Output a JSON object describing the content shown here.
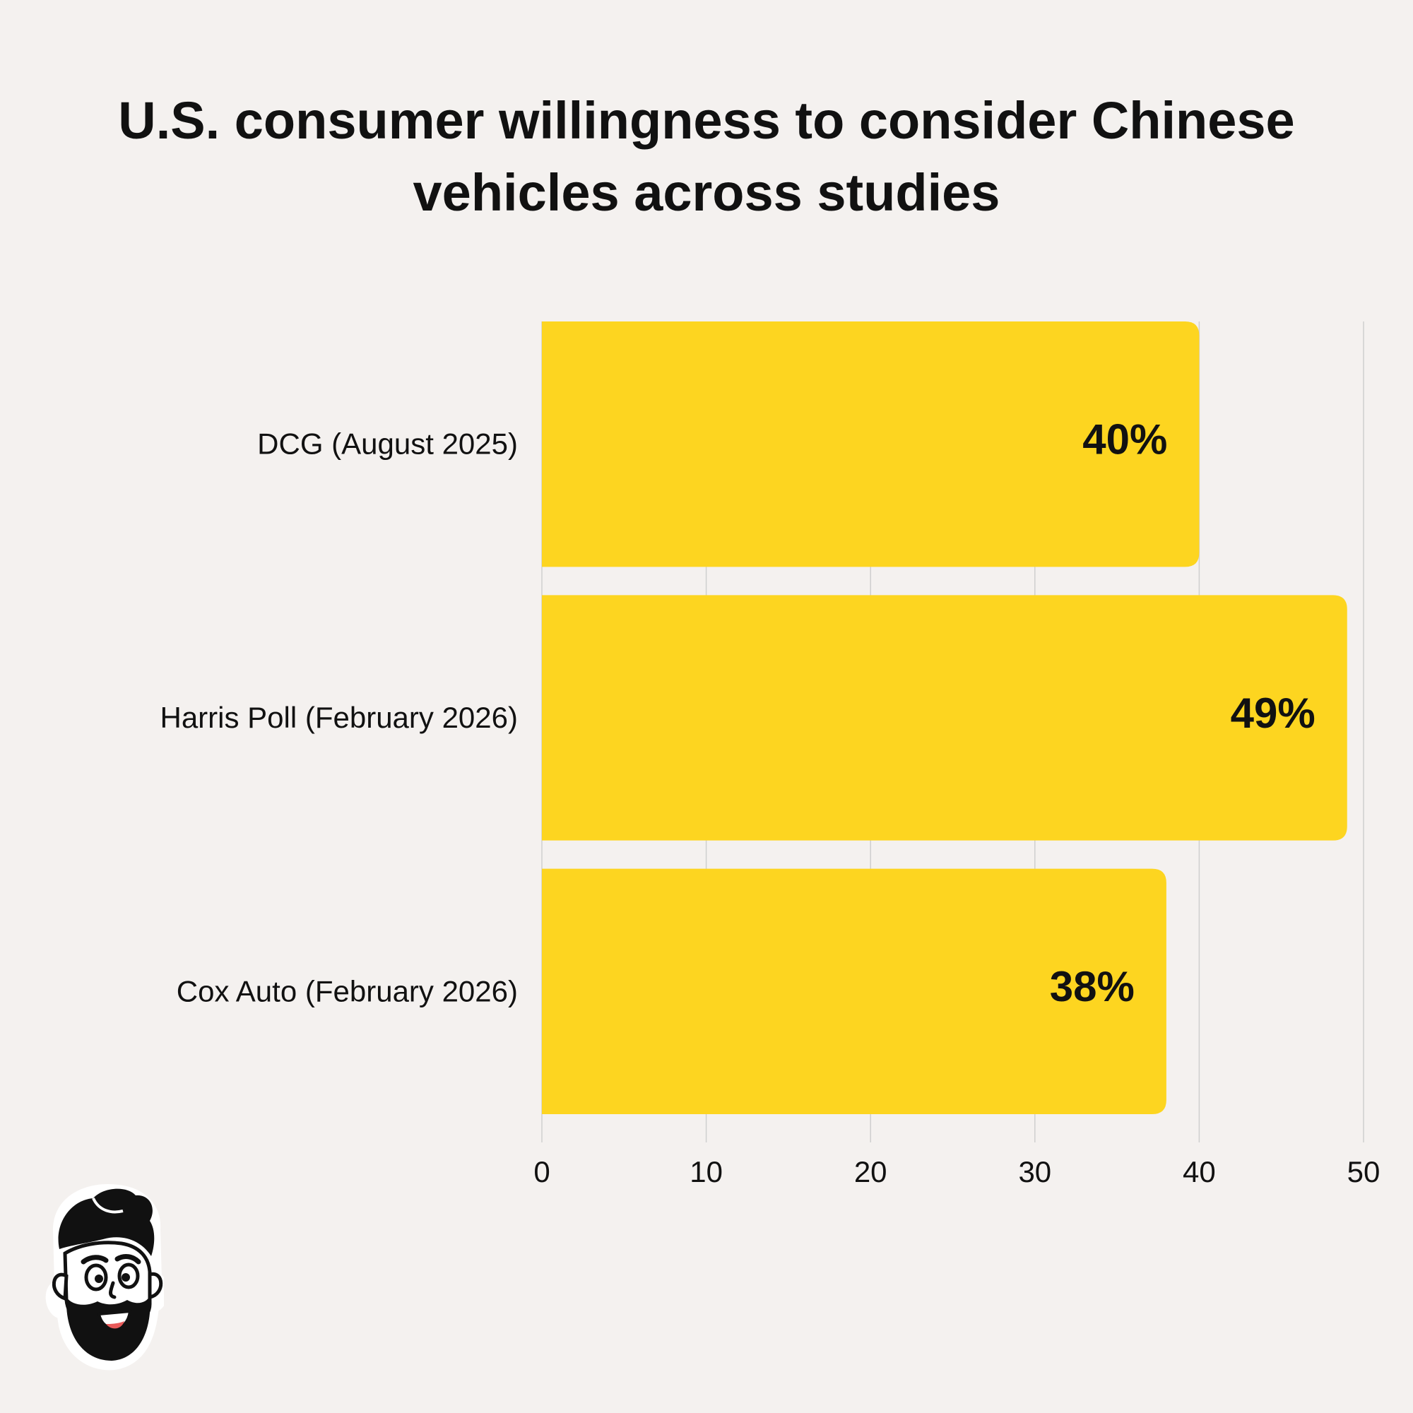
{
  "chart_data": {
    "type": "bar",
    "orientation": "horizontal",
    "title_lines": [
      "U.S. consumer willingness to consider Chinese",
      "vehicles across studies"
    ],
    "title": "U.S. consumer willingness to consider Chinese vehicles across studies",
    "categories": [
      "DCG (August 2025)",
      "Harris Poll (February 2026)",
      "Cox Auto (February 2026)"
    ],
    "values": [
      40,
      49,
      38
    ],
    "data_labels": [
      "40%",
      "49%",
      "38%"
    ],
    "xlabel": "",
    "ylabel": "",
    "xlim": [
      0,
      50
    ],
    "x_ticks": [
      0,
      10,
      20,
      30,
      40,
      50
    ],
    "grid": true,
    "legend": "none",
    "bar_color": "#fdd520",
    "label_color": "#111111",
    "grid_color": "#cfcfcf"
  },
  "logo": {
    "icon": "bearded-man-mascot-icon"
  }
}
